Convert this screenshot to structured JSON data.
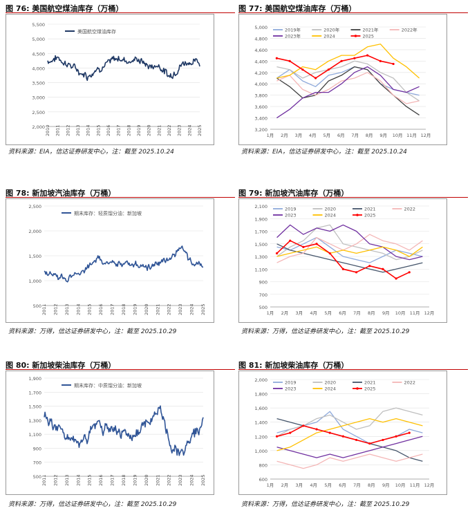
{
  "charts": [
    {
      "id": "fig76",
      "fig_no": "图 76:",
      "title": "美国航空煤油库存（万桶）",
      "source": "资料来源：EIA，信达证券研发中心，注：截至 2025.10.24",
      "color": "#1f3864",
      "chart_data": {
        "type": "line",
        "title": "美国航空煤油库存（万桶）",
        "legend": [
          "美国航空煤油库存"
        ],
        "x_ticks": [
          "2010",
          "2011",
          "2012",
          "2013",
          "2014",
          "2015",
          "2016",
          "2017",
          "2018",
          "2019",
          "2020",
          "2021",
          "2022",
          "2023",
          "2024",
          "2025"
        ],
        "y_ticks": [
          "2,000",
          "2,500",
          "3,000",
          "3,500",
          "4,000",
          "4,500",
          "5,000",
          "5,500"
        ],
        "ylim": [
          2000,
          5500
        ],
        "anchors": [
          4250,
          4350,
          4150,
          3900,
          3750,
          4050,
          4150,
          4350,
          4250,
          4300,
          4050,
          4100,
          3700,
          4100,
          4250,
          4150
        ],
        "noise": 180
      }
    },
    {
      "id": "fig77",
      "fig_no": "图 77:",
      "title": "美国航空煤油库存（万桶）",
      "source": "资料来源：EIA，信达证券研发中心，注：截至 2025.10.24",
      "chart_data": {
        "type": "line",
        "title": "美国航空煤油库存（万桶）",
        "x_ticks": [
          "1月",
          "2月",
          "3月",
          "4月",
          "5月",
          "6月",
          "7月",
          "8月",
          "9月",
          "10月",
          "11月",
          "12月"
        ],
        "y_ticks": [
          "3,200",
          "3,400",
          "3,600",
          "3,800",
          "4,000",
          "4,200",
          "4,400",
          "4,600",
          "4,800",
          "5,000"
        ],
        "ylim": [
          3200,
          5000
        ],
        "series": [
          {
            "name": "2019年",
            "color": "#8ea9db",
            "values": [
              4100,
              4250,
              4050,
              3950,
              4150,
              4200,
              4300,
              4250,
              4000,
              3900,
              3850,
              3800
            ]
          },
          {
            "name": "2020年",
            "color": "#bfbfbf",
            "values": [
              4300,
              4250,
              4100,
              4200,
              4250,
              4300,
              4400,
              4350,
              4200,
              4100,
              3850,
              3700
            ]
          },
          {
            "name": "2021年",
            "color": "#404040",
            "values": [
              4100,
              3950,
              3750,
              3800,
              4050,
              4150,
              4300,
              4250,
              4000,
              3800,
              3600,
              3450
            ]
          },
          {
            "name": "2022年",
            "color": "#f4b6b6",
            "values": [
              4050,
              4150,
              3900,
              3800,
              3900,
              4050,
              4100,
              4200,
              4050,
              3800,
              3650,
              3700
            ]
          },
          {
            "name": "2023年",
            "color": "#7030a0",
            "values": [
              3400,
              3550,
              3750,
              3850,
              3850,
              4000,
              4200,
              4300,
              4150,
              3900,
              3850,
              3950
            ]
          },
          {
            "name": "2024",
            "color": "#ffc000",
            "values": [
              4100,
              4150,
              4300,
              4250,
              4400,
              4500,
              4500,
              4650,
              4700,
              4450,
              4300,
              4100
            ]
          },
          {
            "name": "2025",
            "color": "#ff0000",
            "marker": true,
            "values": [
              4450,
              4400,
              4250,
              4100,
              4250,
              4400,
              4450,
              4500,
              4400,
              4350
            ]
          }
        ]
      }
    },
    {
      "id": "fig78",
      "fig_no": "图 78:",
      "title": "新加坡汽油库存（万桶）",
      "source": "资料来源：万得，信达证券研发中心，注：截至 2025.10.29",
      "color": "#2f5496",
      "chart_data": {
        "type": "line",
        "title": "新加坡汽油库存（万桶）",
        "legend": [
          "期末库存：轻质馏分油：新加坡"
        ],
        "x_ticks": [
          "2011",
          "2012",
          "2013",
          "2014",
          "2015",
          "2016",
          "2017",
          "2018",
          "2019",
          "2020",
          "2021",
          "2022",
          "2023",
          "2024",
          "2025"
        ],
        "y_ticks": [
          "500",
          "1,000",
          "1,500",
          "2,000",
          "2,500"
        ],
        "ylim": [
          500,
          2500
        ],
        "anchors": [
          1150,
          1100,
          1050,
          1150,
          1250,
          1450,
          1300,
          1350,
          1350,
          1300,
          1250,
          1400,
          1500,
          1650,
          1300,
          1250
        ],
        "noise": 90
      }
    },
    {
      "id": "fig79",
      "fig_no": "图 79:",
      "title": "新加坡汽油库存（万桶）",
      "source": "资料来源：万得，信达证券研发中心，注：截至 2025.10.29",
      "chart_data": {
        "type": "line",
        "title": "新加坡汽油库存（万桶）",
        "x_ticks": [
          "1月",
          "2月",
          "3月",
          "4月",
          "5月",
          "6月",
          "7月",
          "8月",
          "9月",
          "10月",
          "11月",
          "12月"
        ],
        "y_ticks": [
          "500",
          "700",
          "900",
          "1,100",
          "1,300",
          "1,500",
          "1,700",
          "1,900",
          "2,100"
        ],
        "ylim": [
          500,
          2100
        ],
        "series": [
          {
            "name": "2019",
            "color": "#8ea9db",
            "values": [
              1450,
              1400,
              1500,
              1600,
              1450,
              1300,
              1250,
              1200,
              1300,
              1400,
              1350,
              1300
            ]
          },
          {
            "name": "2020",
            "color": "#bfbfbf",
            "values": [
              1300,
              1450,
              1550,
              1750,
              1800,
              1500,
              1450,
              1400,
              1350,
              1250,
              1300,
              1400
            ]
          },
          {
            "name": "2021",
            "color": "#44546a",
            "values": [
              1500,
              1400,
              1350,
              1300,
              1250,
              1200,
              1150,
              1100,
              1050,
              1100,
              1150,
              1200
            ]
          },
          {
            "name": "2022",
            "color": "#f4b6b6",
            "values": [
              1200,
              1300,
              1350,
              1600,
              1500,
              1400,
              1500,
              1650,
              1550,
              1500,
              1400,
              1550
            ]
          },
          {
            "name": "2023",
            "color": "#7030a0",
            "values": [
              1600,
              1800,
              1650,
              1750,
              1700,
              1800,
              1700,
              1500,
              1450,
              1300,
              1250,
              1300
            ]
          },
          {
            "name": "2024",
            "color": "#ffc000",
            "values": [
              1300,
              1350,
              1400,
              1450,
              1350,
              1400,
              1350,
              1400,
              1450,
              1400,
              1300,
              1450
            ]
          },
          {
            "name": "2025",
            "color": "#ff0000",
            "marker": true,
            "values": [
              1350,
              1550,
              1450,
              1500,
              1350,
              1100,
              1050,
              1150,
              1100,
              950,
              1050
            ]
          }
        ]
      }
    },
    {
      "id": "fig80",
      "fig_no": "图 80:",
      "title": "新加坡柴油库存（万桶）",
      "source": "资料来源：万得，信达证券研发中心，注：截至 2025.10.29",
      "color": "#2f5496",
      "chart_data": {
        "type": "line",
        "title": "新加坡柴油库存（万桶）",
        "legend": [
          "期末库存：中质馏分油：新加坡"
        ],
        "x_ticks": [
          "2011",
          "2012",
          "2013",
          "2014",
          "2015",
          "2016",
          "2017",
          "2018",
          "2019",
          "2020",
          "2021",
          "2022",
          "2023",
          "2024",
          "2025"
        ],
        "y_ticks": [
          "500",
          "700",
          "900",
          "1,100",
          "1,300",
          "1,500",
          "1,700",
          "1,900"
        ],
        "ylim": [
          500,
          1900
        ],
        "anchors": [
          1350,
          1250,
          1100,
          950,
          1050,
          1250,
          1150,
          1100,
          1100,
          1150,
          1350,
          1450,
          900,
          850,
          1100,
          1250
        ],
        "noise": 110
      }
    },
    {
      "id": "fig81",
      "fig_no": "图 81:",
      "title": "新加坡柴油库存（万桶）",
      "source": "资料来源：万得，信达证券研发中心，注：截至 2025.10.29",
      "chart_data": {
        "type": "line",
        "title": "新加坡柴油库存（万桶）",
        "x_ticks": [
          "1月",
          "2月",
          "3月",
          "4月",
          "5月",
          "6月",
          "7月",
          "8月",
          "9月",
          "10月",
          "11月",
          "12月"
        ],
        "y_ticks": [
          "600",
          "800",
          "1,000",
          "1,200",
          "1,400",
          "1,600",
          "1,800",
          "2,000"
        ],
        "ylim": [
          600,
          2000
        ],
        "series": [
          {
            "name": "2019",
            "color": "#8ea9db",
            "values": [
              1250,
              1300,
              1350,
              1400,
              1550,
              1300,
              1200,
              1100,
              1150,
              1200,
              1300,
              1250
            ]
          },
          {
            "name": "2020",
            "color": "#bfbfbf",
            "values": [
              1200,
              1300,
              1350,
              1450,
              1500,
              1400,
              1300,
              1350,
              1550,
              1600,
              1550,
              1500
            ]
          },
          {
            "name": "2021",
            "color": "#44546a",
            "values": [
              1450,
              1400,
              1350,
              1300,
              1250,
              1200,
              1150,
              1100,
              1050,
              1000,
              900,
              850
            ]
          },
          {
            "name": "2022",
            "color": "#f4b6b6",
            "values": [
              850,
              800,
              750,
              800,
              900,
              850,
              900,
              950,
              900,
              850,
              900,
              950
            ]
          },
          {
            "name": "2023",
            "color": "#7030a0",
            "values": [
              1050,
              1000,
              950,
              900,
              950,
              900,
              950,
              1000,
              1050,
              1100,
              1150,
              1200
            ]
          },
          {
            "name": "2024",
            "color": "#ffc000",
            "values": [
              1000,
              1050,
              1150,
              1250,
              1300,
              1350,
              1400,
              1450,
              1400,
              1450,
              1400,
              1350
            ]
          },
          {
            "name": "2025",
            "color": "#ff0000",
            "marker": true,
            "values": [
              1200,
              1250,
              1350,
              1300,
              1250,
              1200,
              1150,
              1100,
              1150,
              1200,
              1250
            ]
          }
        ]
      }
    }
  ]
}
